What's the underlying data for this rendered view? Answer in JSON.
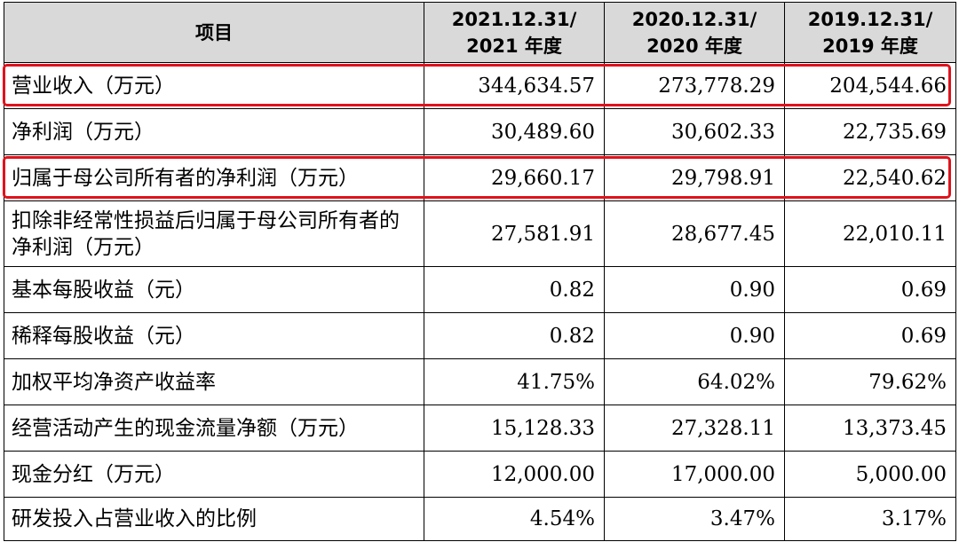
{
  "header": {
    "item": "项目",
    "periods": [
      {
        "date": "2021.12.31/",
        "label": "2021 年度"
      },
      {
        "date": "2020.12.31/",
        "label": "2020 年度"
      },
      {
        "date": "2019.12.31/",
        "label": "2019 年度"
      }
    ]
  },
  "rows": [
    {
      "label": "营业收入（万元）",
      "values": [
        "344,634.57",
        "273,778.29",
        "204,544.66"
      ],
      "highlighted": true
    },
    {
      "label": "净利润（万元）",
      "values": [
        "30,489.60",
        "30,602.33",
        "22,735.69"
      ]
    },
    {
      "label": "归属于母公司所有者的净利润（万元）",
      "values": [
        "29,660.17",
        "29,798.91",
        "22,540.62"
      ],
      "highlighted": true
    },
    {
      "label": "扣除非经常性损益后归属于母公司所有者的净利润（万元）",
      "values": [
        "27,581.91",
        "28,677.45",
        "22,010.11"
      ]
    },
    {
      "label": "基本每股收益（元）",
      "values": [
        "0.82",
        "0.90",
        "0.69"
      ]
    },
    {
      "label": "稀释每股收益（元）",
      "values": [
        "0.82",
        "0.90",
        "0.69"
      ]
    },
    {
      "label": "加权平均净资产收益率",
      "values": [
        "41.75%",
        "64.02%",
        "79.62%"
      ]
    },
    {
      "label": "经营活动产生的现金流量净额（万元）",
      "values": [
        "15,128.33",
        "27,328.11",
        "13,373.45"
      ]
    },
    {
      "label": "现金分红（万元）",
      "values": [
        "12,000.00",
        "17,000.00",
        "5,000.00"
      ]
    },
    {
      "label": "研发投入占营业收入的比例",
      "values": [
        "4.54%",
        "3.47%",
        "3.17%"
      ]
    }
  ],
  "highlight_color": "#e0121c",
  "header_bg": "#d9d9d9"
}
